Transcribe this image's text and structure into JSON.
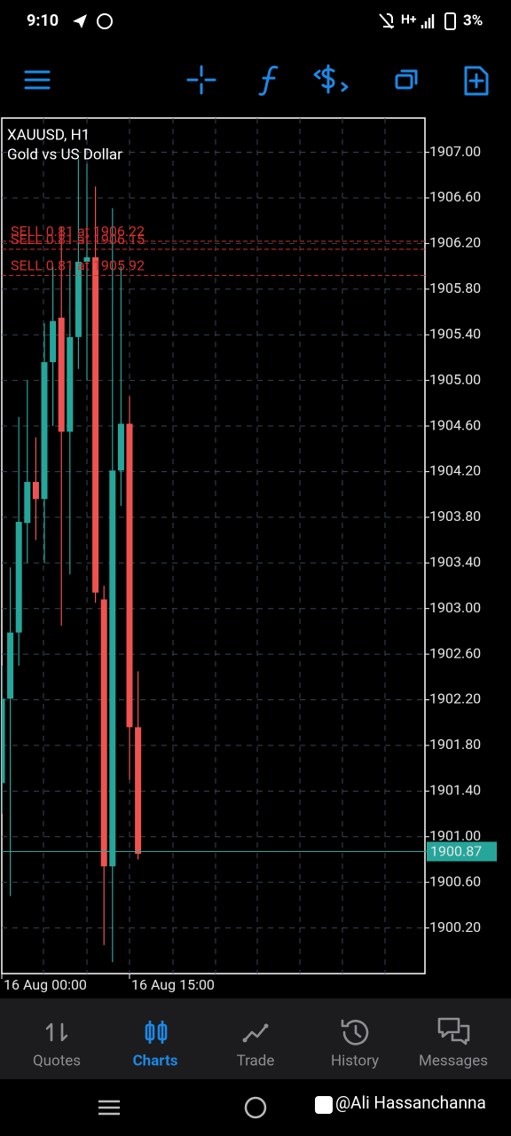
{
  "status_bar": {
    "time": "9:10",
    "network": "H+",
    "battery": "3%"
  },
  "chart_data": {
    "type": "candlestick",
    "title": "XAUUSD, H1",
    "subtitle": "Gold vs US Dollar",
    "categories": [
      "16 Aug 00:00",
      null,
      null,
      null,
      null,
      null,
      null,
      null,
      null,
      null,
      null,
      null,
      null,
      null,
      null,
      "16 Aug 15:00",
      null
    ],
    "series": [
      {
        "open": [
          1901.47,
          1902.21,
          1902.79,
          1903.75,
          1904.11,
          1903.96,
          1905.16,
          1905.55,
          1904.55,
          1905.38,
          1906.04,
          1906.08,
          1903.08,
          1900.74,
          1904.21,
          1904.62,
          1901.96
        ],
        "high": [
          1902.5,
          1903.36,
          1904.68,
          1905.0,
          1904.5,
          1905.5,
          1906.0,
          1906.35,
          1906.0,
          1906.94,
          1906.9,
          1906.7,
          1903.2,
          1906.51,
          1906.0,
          1904.86,
          1902.45
        ],
        "low": [
          1901.2,
          1900.48,
          1902.5,
          1903.4,
          1903.6,
          1903.4,
          1904.6,
          1902.85,
          1903.3,
          1905.1,
          1905.0,
          1903.05,
          1900.05,
          1899.9,
          1903.9,
          1901.5,
          1900.8
        ],
        "close": [
          1902.21,
          1902.79,
          1903.76,
          1904.11,
          1903.96,
          1905.16,
          1905.52,
          1904.55,
          1905.38,
          1906.04,
          1906.08,
          1903.14,
          1900.74,
          1904.21,
          1904.62,
          1901.96,
          1900.85
        ],
        "up_color": "#26a69a",
        "down_color": "#ef5350"
      }
    ],
    "ylim": [
      1899.8,
      1907.3
    ],
    "yticks": [
      {
        "value": 1907,
        "label": "1907.00"
      },
      {
        "value": 1906.6,
        "label": "1906.60"
      },
      {
        "value": 1906.2,
        "label": "1906.20"
      },
      {
        "value": 1905.8,
        "label": "1905.80"
      },
      {
        "value": 1905.4,
        "label": "1905.40"
      },
      {
        "value": 1905,
        "label": "1905.00"
      },
      {
        "value": 1904.6,
        "label": "1904.60"
      },
      {
        "value": 1904.2,
        "label": "1904.20"
      },
      {
        "value": 1903.8,
        "label": "1903.80"
      },
      {
        "value": 1903.4,
        "label": "1903.40"
      },
      {
        "value": 1903,
        "label": "1903.00"
      },
      {
        "value": 1902.6,
        "label": "1902.60"
      },
      {
        "value": 1902.2,
        "label": "1902.20"
      },
      {
        "value": 1901.8,
        "label": "1901.80"
      },
      {
        "value": 1901.4,
        "label": "1901.40"
      },
      {
        "value": 1901,
        "label": "1901.00"
      },
      {
        "value": 1900.6,
        "label": "1900.60"
      },
      {
        "value": 1900.2,
        "label": "1900.20"
      }
    ],
    "grid": true,
    "orders": [
      {
        "label": "SELL 0.81 at 1906.22",
        "value": 1906.22
      },
      {
        "label": "SELL 0.81 at 1906.15",
        "value": 1906.15
      },
      {
        "label": "SELL 0.81 at 1905.92",
        "value": 1905.92
      }
    ],
    "order_color": "#d32f2f",
    "current_price": 1900.87
  },
  "tabs": [
    "Quotes",
    "Charts",
    "Trade",
    "History",
    "Messages"
  ],
  "active_tab": 1,
  "watermark": "@Ali Hassanchanna"
}
